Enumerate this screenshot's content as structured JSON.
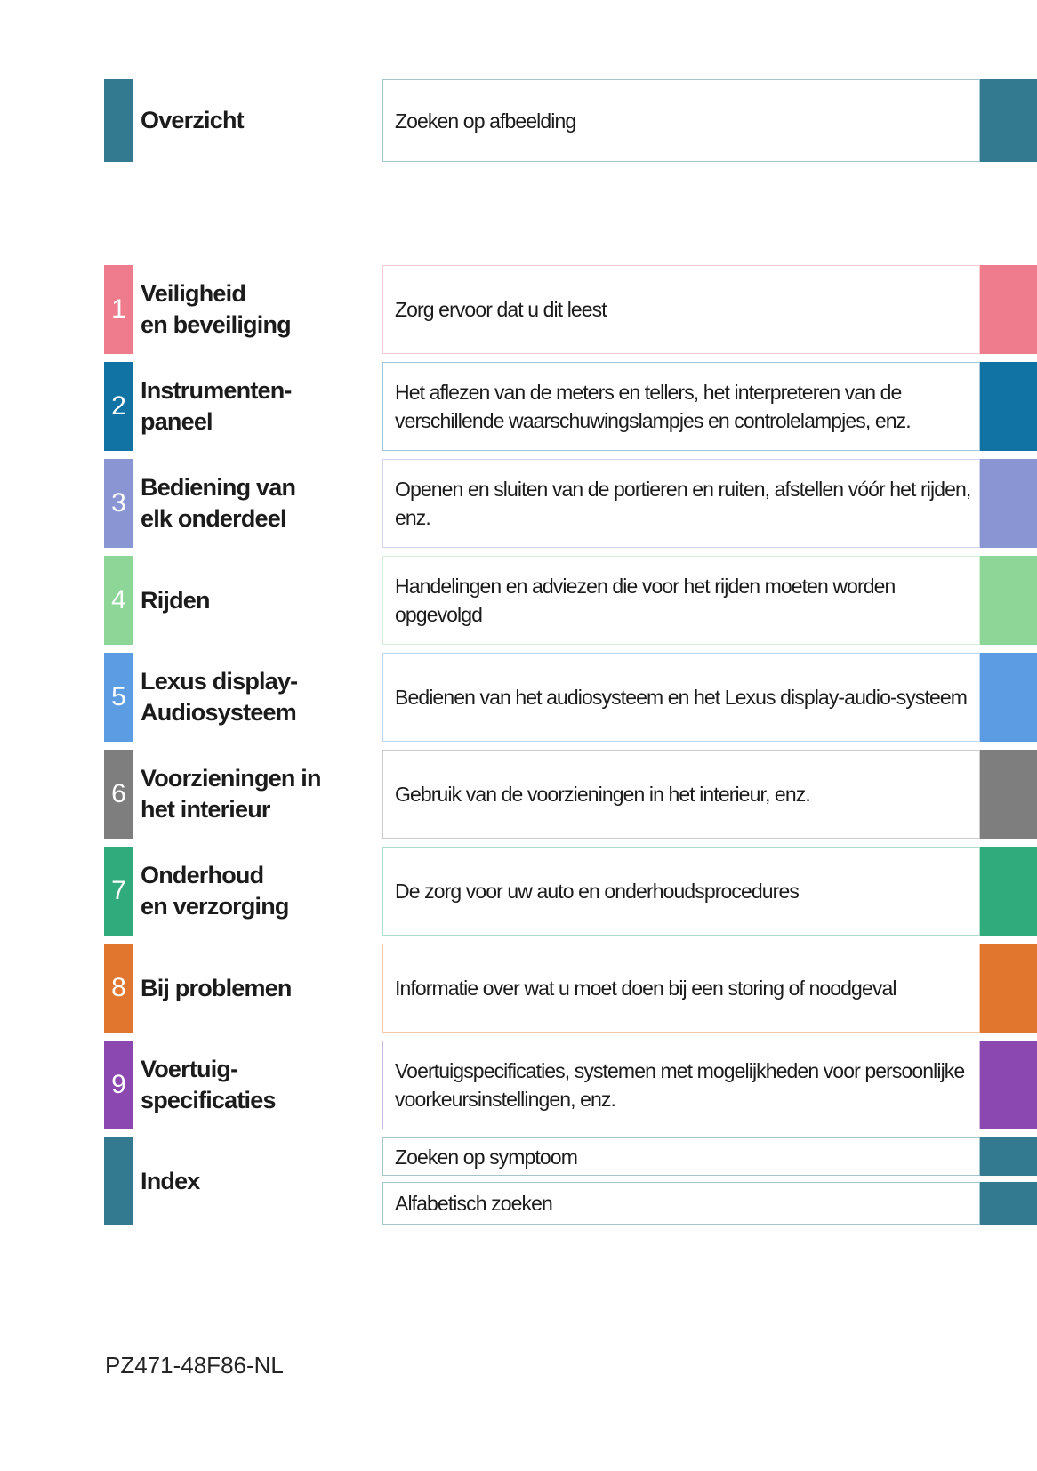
{
  "overview": {
    "title": "Overzicht",
    "description": "Zoeken op afbeelding",
    "color": "#337A90",
    "border_color": "#A3C3CD"
  },
  "sections": [
    {
      "number": "1",
      "title": "Veiligheid\nen beveiliging",
      "description": "Zorg ervoor dat u dit leest",
      "color": "#EE7C8D",
      "border_color": "#F8CBD1"
    },
    {
      "number": "2",
      "title": "Instrumenten-\npaneel",
      "description": "Het aflezen van de meters en tellers, het interpreteren van de verschillende waarschuwingslampjes en controlelampjes, enz.",
      "color": "#1173A4",
      "border_color": "#A0C7DB"
    },
    {
      "number": "3",
      "title": "Bediening van\nelk onderdeel",
      "description": "Openen en sluiten van de portieren en ruiten, afstellen vóór het rijden, enz.",
      "color": "#8A95D3",
      "border_color": "#D0D5ED"
    },
    {
      "number": "4",
      "title": "Rijden",
      "description": "Handelingen en adviezen die voor het rijden moeten worden opgevolgd",
      "color": "#8ED698",
      "border_color": "#D2EFD6"
    },
    {
      "number": "5",
      "title": "Lexus display-\nAudiosysteem",
      "description": "Bedienen van het audiosysteem en het Lexus display-audio-systeem",
      "color": "#5B9CE3",
      "border_color": "#BDD7F4"
    },
    {
      "number": "6",
      "title": "Voorzieningen in\nhet interieur",
      "description": "Gebruik van de voorzieningen in het interieur, enz.",
      "color": "#7E7E7E",
      "border_color": "#CBCBCB"
    },
    {
      "number": "7",
      "title": "Onderhoud\nen verzorging",
      "description": "De zorg voor uw auto en onderhoudsprocedures",
      "color": "#30AC7C",
      "border_color": "#ACDECB"
    },
    {
      "number": "8",
      "title": "Bij problemen",
      "description": "Informatie over wat u moet doen bij een storing of noodgeval",
      "color": "#E1762E",
      "border_color": "#F3C8AB"
    },
    {
      "number": "9",
      "title": "Voertuig-\nspecificaties",
      "description": "Voertuigspecificaties, systemen met mogelijkheden voor persoonlijke voorkeursinstellingen, enz.",
      "color": "#8B48B1",
      "border_color": "#D1B6E0"
    }
  ],
  "index": {
    "title": "Index",
    "items": [
      "Zoeken op symptoom",
      "Alfabetisch zoeken"
    ],
    "color": "#337A90",
    "border_color": "#A3C3CD"
  },
  "footer": {
    "code": "PZ471-48F86-NL"
  }
}
